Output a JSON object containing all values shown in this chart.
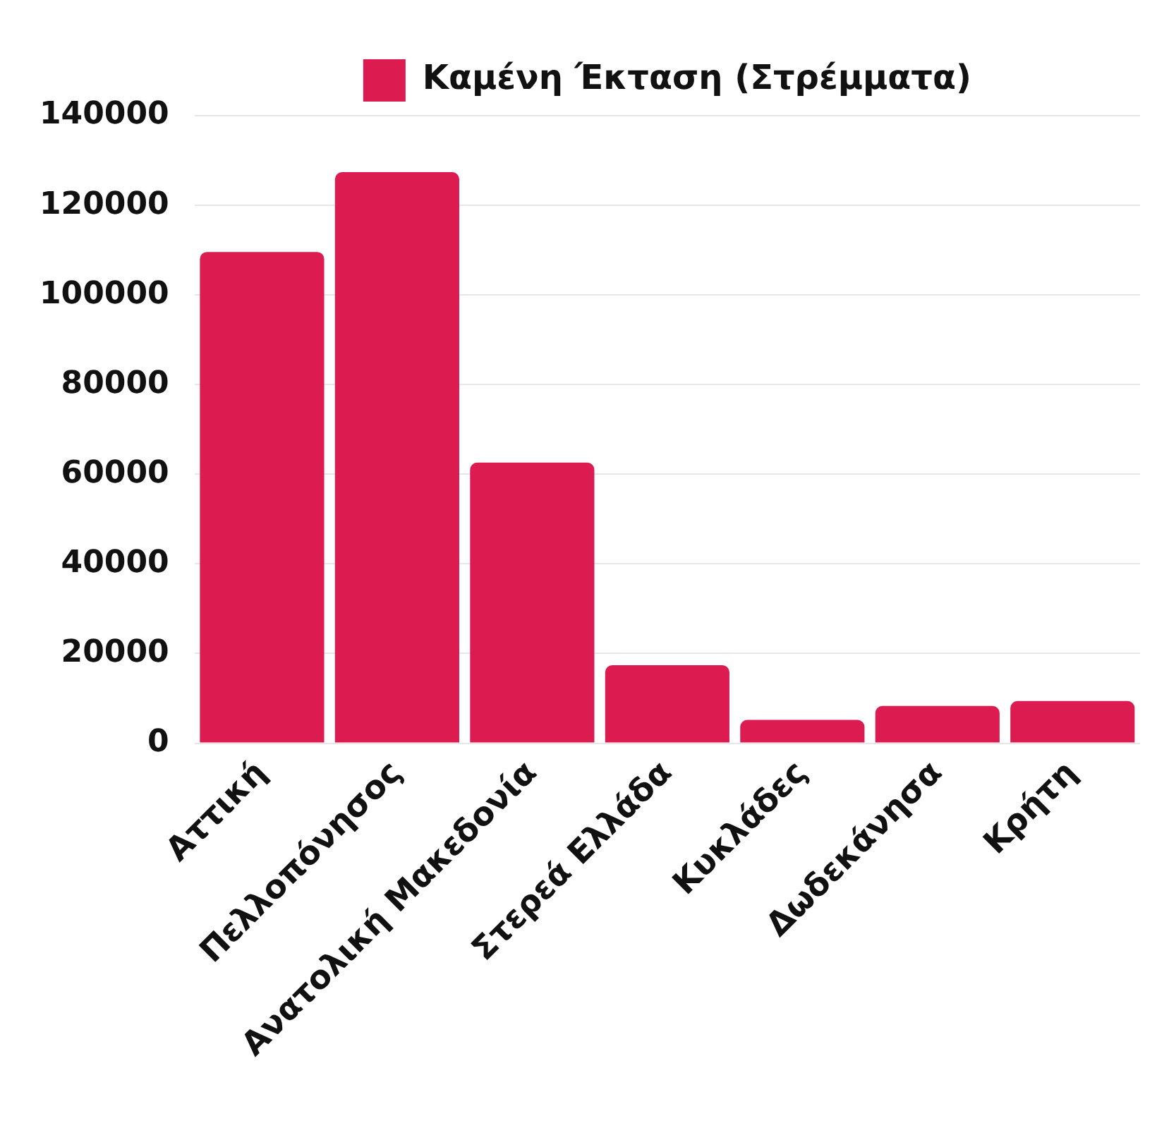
{
  "chart_data": {
    "type": "bar",
    "categories": [
      "Αττική",
      "Πελλοπόνησος",
      "Ανατολική Μακεδονία",
      "Στερεά Ελλάδα",
      "Κυκλάδες",
      "Δωδεκάνησα",
      "Κρήτη"
    ],
    "series": [
      {
        "name": "Καμένη Έκταση (Στρέμματα)",
        "color": "#dc1c50",
        "values": [
          109600,
          127400,
          62600,
          17400,
          5200,
          8300,
          9400
        ]
      }
    ],
    "ylim": [
      0,
      140000
    ],
    "yticks": [
      0,
      20000,
      40000,
      60000,
      80000,
      100000,
      120000,
      140000
    ],
    "grid": "y",
    "legend": "top"
  }
}
